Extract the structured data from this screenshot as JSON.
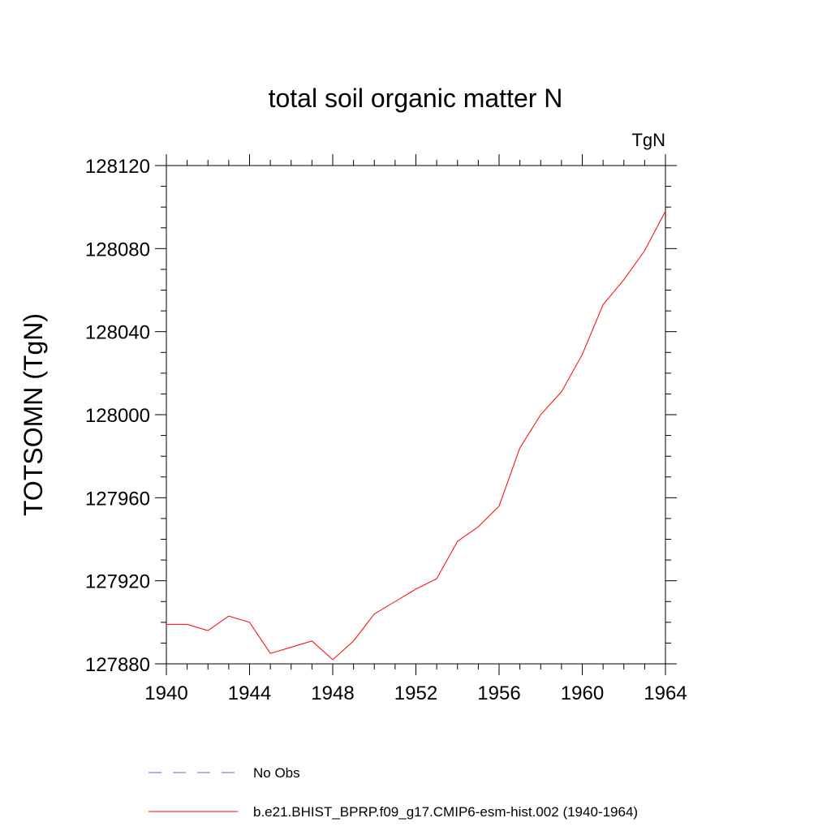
{
  "chart_data": {
    "type": "line",
    "title": "total soil organic matter N",
    "units_label": "TgN",
    "xlabel": "",
    "ylabel": "TOTSOMN  (TgN)",
    "xlim": [
      1940,
      1964
    ],
    "ylim": [
      127880,
      128120
    ],
    "xticks": [
      1940,
      1944,
      1948,
      1952,
      1956,
      1960,
      1964
    ],
    "yticks": [
      127880,
      127920,
      127960,
      128000,
      128040,
      128080,
      128120
    ],
    "x": [
      1940,
      1941,
      1942,
      1943,
      1944,
      1945,
      1946,
      1947,
      1948,
      1949,
      1950,
      1951,
      1952,
      1953,
      1954,
      1955,
      1956,
      1957,
      1958,
      1959,
      1960,
      1961,
      1962,
      1963,
      1964
    ],
    "series": [
      {
        "name": "b.e21.BHIST_BPRP.f09_g17.CMIP6-esm-hist.002 (1940-1964)",
        "color": "#ff0000",
        "style": "solid",
        "values": [
          127899,
          127899,
          127896,
          127903,
          127900,
          127885,
          127888,
          127891,
          127882,
          127891,
          127904,
          127910,
          127916,
          127921,
          127939,
          127946,
          127956,
          127984,
          128000,
          128011,
          128029,
          128053,
          128065,
          128079,
          128098
        ]
      }
    ],
    "legend": [
      {
        "label": "No Obs",
        "color": "#6666cc",
        "style": "dashed"
      },
      {
        "label": "b.e21.BHIST_BPRP.f09_g17.CMIP6-esm-hist.002 (1940-1964)",
        "color": "#ff0000",
        "style": "solid"
      }
    ],
    "legend_placement": "bottom",
    "grid": false
  }
}
